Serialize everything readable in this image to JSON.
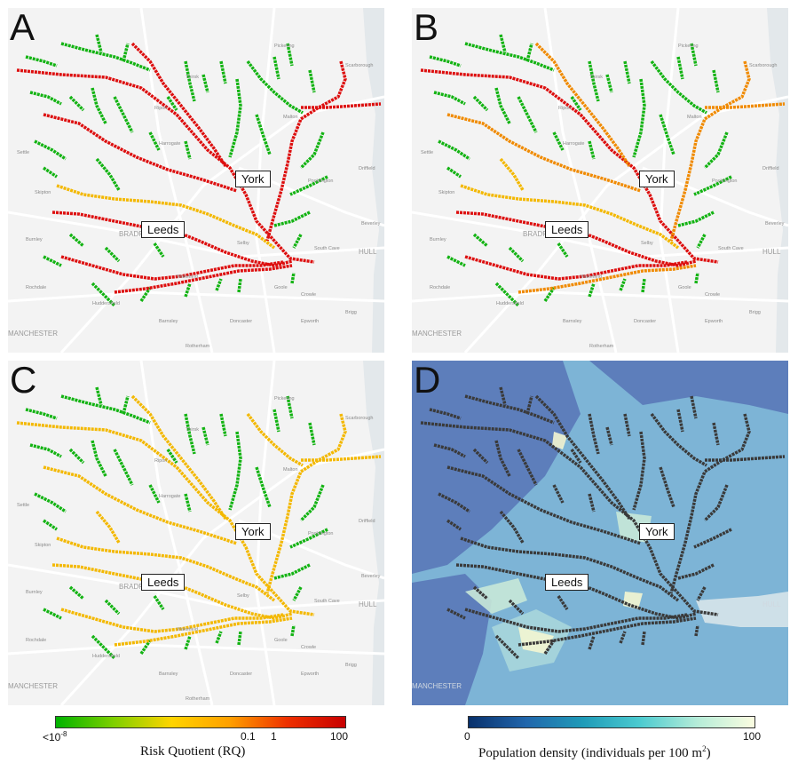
{
  "panels": {
    "a": {
      "letter": "A",
      "scheme": "risk"
    },
    "b": {
      "letter": "B",
      "scheme": "risk"
    },
    "c": {
      "letter": "C",
      "scheme": "risk"
    },
    "d": {
      "letter": "D",
      "scheme": "river"
    }
  },
  "cities": {
    "york": "York",
    "leeds": "Leeds"
  },
  "places": {
    "manchester": "MANCHESTER",
    "hull": "HULL",
    "bradford": "BRADFORD",
    "scarborough": "Scarborough",
    "driffield": "Driffield",
    "beverley": "Beverley",
    "south_cave": "South Cave",
    "pocklington": "Pocklington",
    "selby": "Selby",
    "doncaster": "Doncaster",
    "goole": "Goole",
    "settle": "Settle",
    "skipton": "Skipton",
    "harrogate": "Harrogate",
    "ripon": "Ripon",
    "thirsk": "Thirsk",
    "malton": "Malton",
    "pickering": "Pickering",
    "burnley": "Burnley",
    "rochdale": "Rochdale",
    "huddersfield": "Huddersfield",
    "wakefield": "Wakefield",
    "barnsley": "Barnsley",
    "rotherham": "Rotherham",
    "epworth": "Epworth",
    "brigg": "Brigg",
    "crowle": "Crowle"
  },
  "legend_risk": {
    "title": "Risk Quotient (RQ)",
    "tick_min": "<10",
    "tick_min_exp": "-8",
    "tick_01": "0.1",
    "tick_1": "1",
    "tick_max": "100",
    "colors": [
      "#00b300",
      "#7fd000",
      "#ffd400",
      "#ffa000",
      "#ee3000",
      "#c80000"
    ]
  },
  "legend_pop": {
    "title": "Population density (individuals per 100 m",
    "title_sup": "2",
    "title_close": ")",
    "tick_min": "0",
    "tick_max": "100",
    "colors": [
      "#08306b",
      "#2166ac",
      "#1f9bb8",
      "#4ccbd0",
      "#b5ecd8",
      "#fbfde0"
    ]
  },
  "map_colors": {
    "background": "#f3f3f3",
    "road": "#ffffff",
    "risk_low": "#13b313",
    "risk_mid": "#f3b800",
    "risk_orange": "#f08a00",
    "risk_high": "#dd0f0f",
    "river_dark": "#3a3a3a",
    "pop_low": "#5a78b8",
    "pop_mid": "#7db4d6",
    "pop_high": "#f4f6d2",
    "sea": "#c9d6de"
  }
}
